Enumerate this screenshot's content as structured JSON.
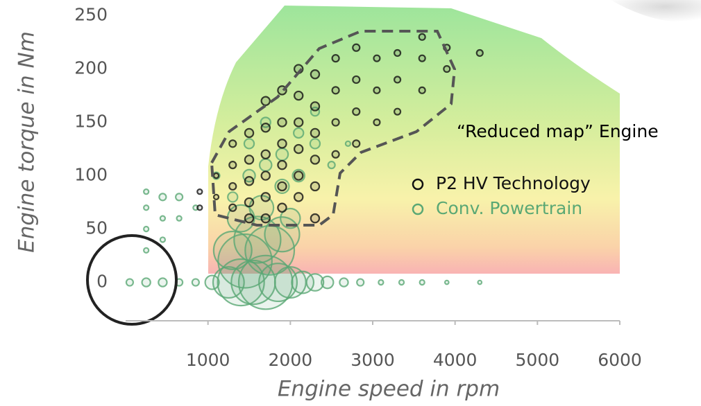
{
  "chart_data": {
    "type": "bubble",
    "x_label": "Engine speed in rpm",
    "y_label": "Engine torque in Nm",
    "annotation": "“Reduced map” Engine",
    "xlim": [
      0,
      6000
    ],
    "xticks": [
      1000,
      2000,
      3000,
      4000,
      5000,
      6000
    ],
    "ylim": [
      -36,
      264
    ],
    "yticks": [
      0,
      50,
      100,
      150,
      200,
      250
    ],
    "grid": false,
    "series": [
      {
        "name": "Conv. Powertrain",
        "color": "#5aa874",
        "x": [
          50,
          250,
          450,
          650,
          850,
          1050,
          1250,
          1400,
          1550,
          1700,
          1850,
          2000,
          2150,
          2300,
          2450,
          2650,
          2850,
          3100,
          3350,
          3600,
          3900,
          4300,
          250,
          250,
          250,
          250,
          450,
          450,
          450,
          650,
          650,
          850,
          1300,
          1450,
          1600,
          1750,
          1900,
          1400,
          1650,
          2000,
          1500,
          1500,
          1700,
          1700,
          1900,
          1900,
          2100,
          2100,
          2300,
          2300,
          2500,
          2700,
          1300,
          1100
        ],
        "values": [
          0,
          0,
          0,
          0,
          0,
          0,
          0,
          0,
          0,
          0,
          0,
          0,
          0,
          0,
          0,
          0,
          0,
          0,
          0,
          0,
          0,
          0,
          30,
          50,
          70,
          85,
          40,
          60,
          80,
          60,
          80,
          70,
          30,
          20,
          40,
          30,
          45,
          60,
          70,
          60,
          100,
          130,
          110,
          150,
          120,
          90,
          140,
          100,
          130,
          160,
          110,
          130,
          80,
          100
        ],
        "sizes": [
          1,
          1.5,
          1.5,
          1,
          1,
          4,
          20,
          45,
          40,
          60,
          30,
          20,
          10,
          6,
          3,
          1.5,
          1,
          0.5,
          0.5,
          0.5,
          0.3,
          0.3,
          0.5,
          0.5,
          0.5,
          0.5,
          0.5,
          0.5,
          1,
          0.5,
          1,
          0.5,
          30,
          60,
          45,
          50,
          25,
          15,
          12,
          8,
          3,
          2,
          3,
          2,
          3,
          4,
          2,
          3,
          2,
          1.5,
          1,
          0.5,
          2,
          1
        ]
      },
      {
        "name": "P2 HV Technology",
        "color": "#111111",
        "x": [
          900,
          900,
          1100,
          1100,
          1300,
          1300,
          1300,
          1300,
          1500,
          1500,
          1500,
          1500,
          1500,
          1700,
          1700,
          1700,
          1700,
          1700,
          1700,
          1900,
          1900,
          1900,
          1900,
          1900,
          1900,
          2100,
          2100,
          2100,
          2100,
          2100,
          2100,
          2300,
          2300,
          2300,
          2300,
          2300,
          2300,
          2550,
          2550,
          2550,
          2550,
          2800,
          2800,
          2800,
          2800,
          3050,
          3050,
          3050,
          3300,
          3300,
          3300,
          3600,
          3600,
          3600,
          3900,
          3900,
          4300
        ],
        "values": [
          70,
          85,
          80,
          100,
          70,
          90,
          110,
          130,
          60,
          75,
          95,
          115,
          140,
          60,
          80,
          100,
          120,
          145,
          170,
          70,
          90,
          110,
          130,
          150,
          180,
          80,
          100,
          125,
          150,
          175,
          200,
          60,
          90,
          115,
          140,
          165,
          195,
          120,
          150,
          180,
          210,
          130,
          160,
          190,
          220,
          150,
          180,
          210,
          160,
          190,
          215,
          180,
          210,
          230,
          200,
          220,
          215
        ],
        "sizes": [
          0.5,
          0.5,
          0.5,
          0.5,
          1,
          1,
          1,
          1,
          1.5,
          1.5,
          1.5,
          1.5,
          1.5,
          1.5,
          1.5,
          1.5,
          1.5,
          1.5,
          1.5,
          1.5,
          1.5,
          1.5,
          1.5,
          1.5,
          1.5,
          1.5,
          1.5,
          1.5,
          1.5,
          1.5,
          1.5,
          1.5,
          1.5,
          1.5,
          1.5,
          1.5,
          1.5,
          1,
          1,
          1,
          1,
          1,
          1,
          1,
          1,
          0.8,
          0.8,
          0.8,
          0.8,
          0.8,
          0.8,
          0.8,
          0.8,
          0.8,
          0.8,
          0.8,
          0.8
        ]
      }
    ]
  }
}
